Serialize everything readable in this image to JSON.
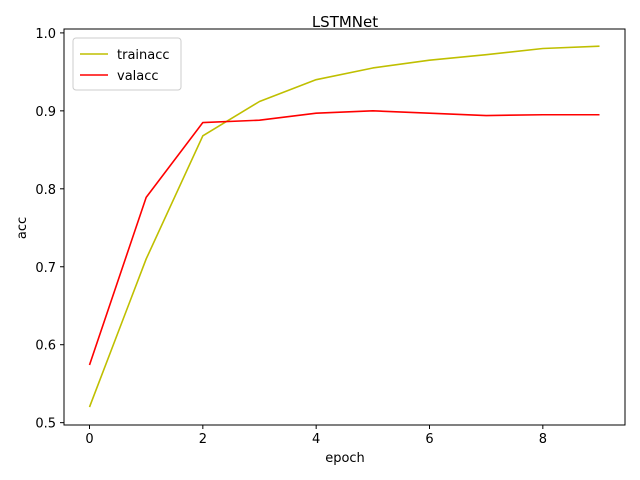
{
  "chart_data": {
    "type": "line",
    "title": "LSTMNet",
    "xlabel": "epoch",
    "ylabel": "acc",
    "xlim": [
      -0.45,
      9.45
    ],
    "ylim": [
      0.497,
      1.005
    ],
    "xticks": [
      0,
      2,
      4,
      6,
      8
    ],
    "yticks": [
      0.5,
      0.6,
      0.7,
      0.8,
      0.9,
      1.0
    ],
    "xtick_labels": [
      "0",
      "2",
      "4",
      "6",
      "8"
    ],
    "ytick_labels": [
      "0.5",
      "0.6",
      "0.7",
      "0.8",
      "0.9",
      "1.0"
    ],
    "grid": false,
    "legend_position": "upper-left",
    "x": [
      0,
      1,
      2,
      3,
      4,
      5,
      6,
      7,
      8,
      9
    ],
    "series": [
      {
        "name": "trainacc",
        "color": "#bfbf00",
        "values": [
          0.52,
          0.71,
          0.868,
          0.912,
          0.94,
          0.955,
          0.965,
          0.972,
          0.98,
          0.983
        ]
      },
      {
        "name": "valacc",
        "color": "#ff0000",
        "values": [
          0.574,
          0.789,
          0.885,
          0.888,
          0.897,
          0.9,
          0.897,
          0.894,
          0.895,
          0.895
        ]
      }
    ]
  }
}
